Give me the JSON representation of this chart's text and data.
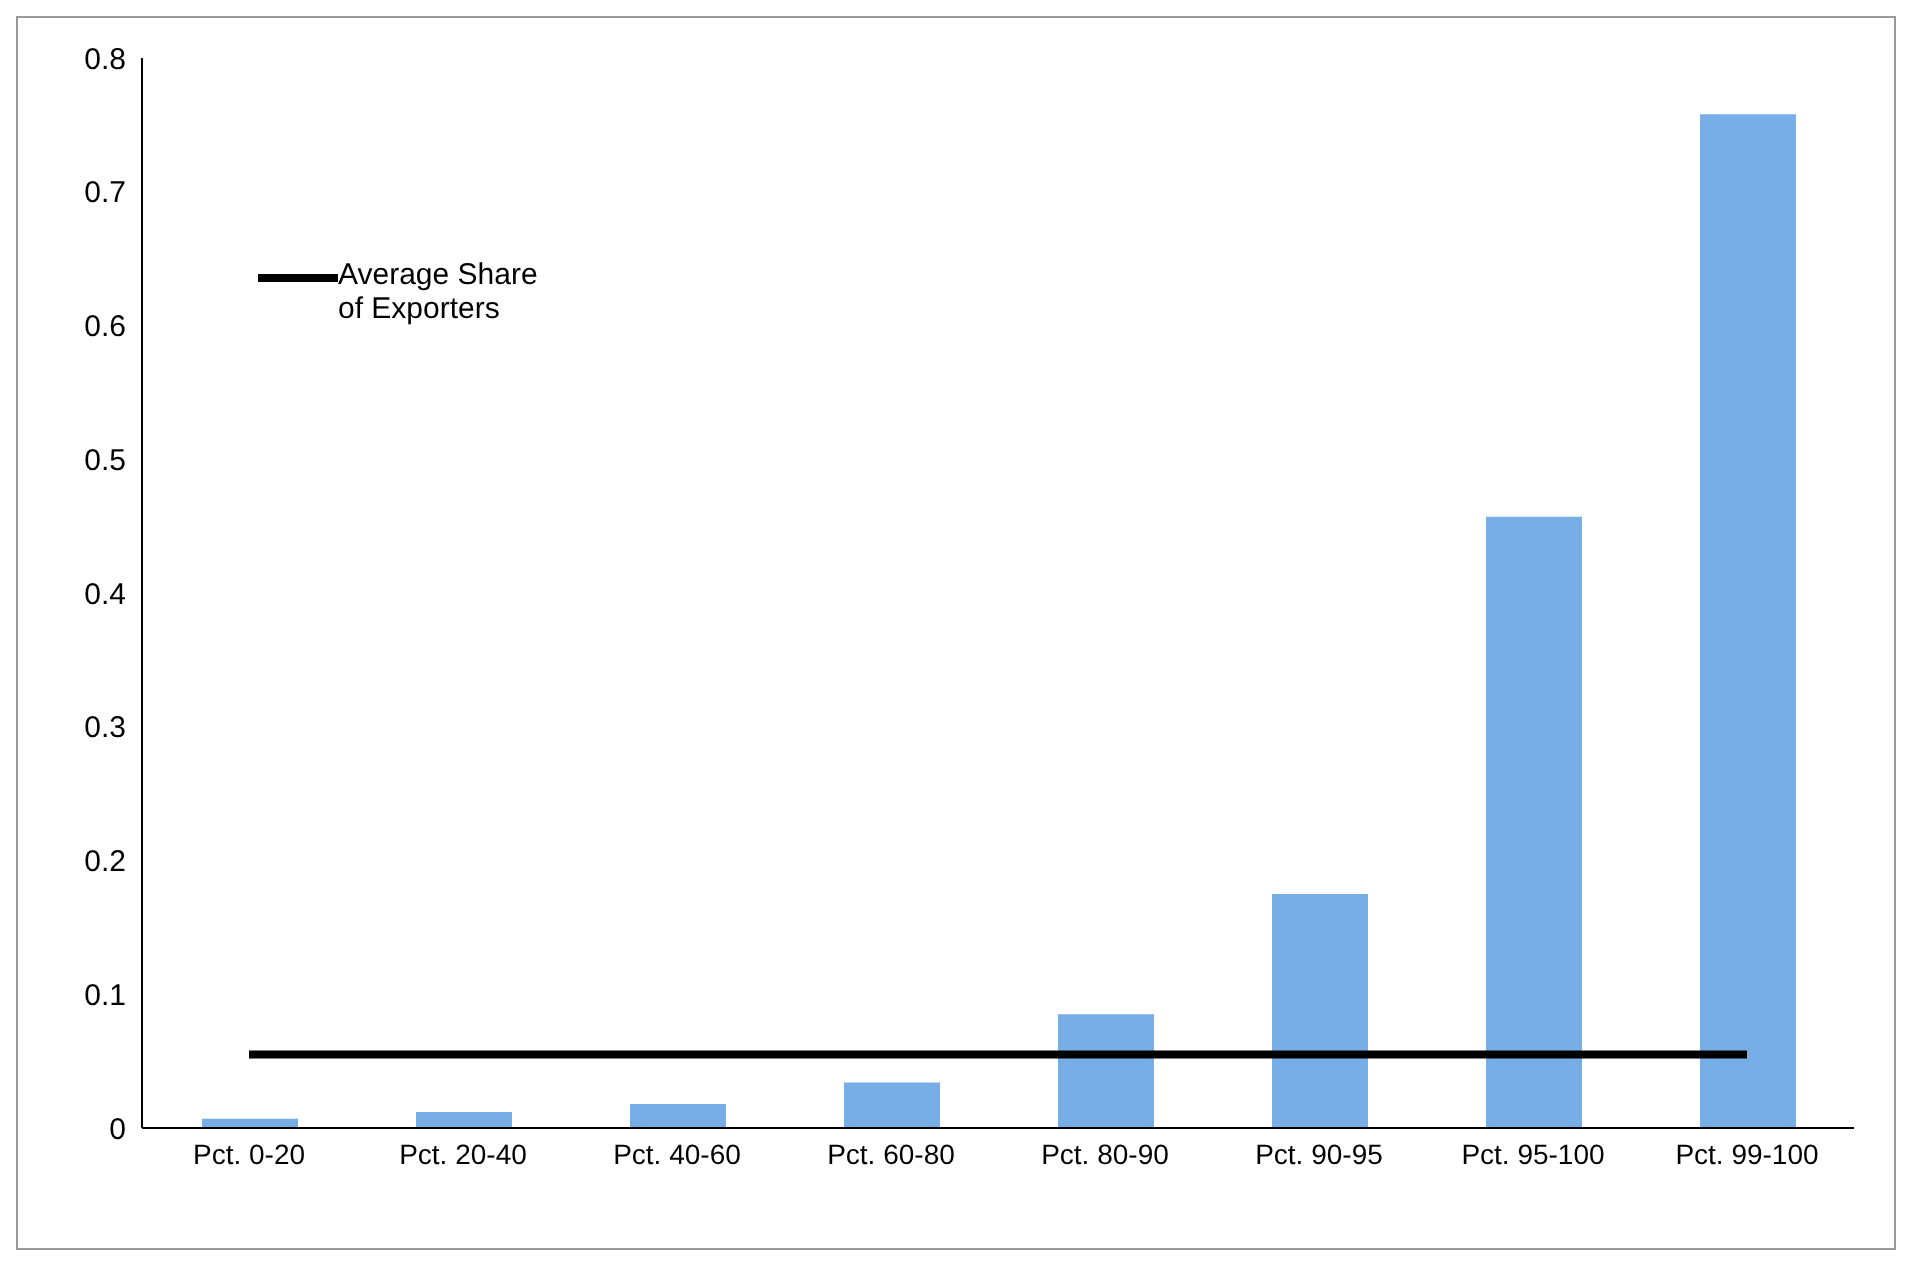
{
  "chart_data": {
    "type": "bar",
    "categories": [
      "Pct. 0-20",
      "Pct. 20-40",
      "Pct. 40-60",
      "Pct. 60-80",
      "Pct. 80-90",
      "Pct. 90-95",
      "Pct. 95-100",
      "Pct. 99-100"
    ],
    "series": [
      {
        "color": "#78aee6",
        "values": [
          0.007,
          0.012,
          0.018,
          0.034,
          0.085,
          0.175,
          0.457,
          0.758
        ]
      },
      {
        "type": "line",
        "name": "Average Share of Exporters",
        "color": "#000000",
        "values": [
          0.055,
          0.055,
          0.055,
          0.055,
          0.055,
          0.055,
          0.055,
          0.055
        ]
      }
    ],
    "ylim": [
      0,
      0.8
    ],
    "yticks": [
      0,
      0.1,
      0.2,
      0.3,
      0.4,
      0.5,
      0.6,
      0.7,
      0.8
    ],
    "grid": false,
    "legend": "top left",
    "marker": "none"
  }
}
